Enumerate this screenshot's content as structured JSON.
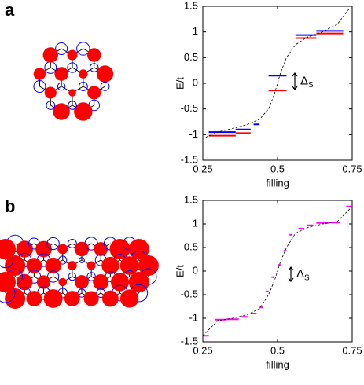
{
  "panels": [
    "a",
    "b"
  ],
  "chart_data": [
    {
      "type": "step",
      "xlabel": "filling",
      "ylabel": "E/t",
      "xlim": [
        0.25,
        0.75
      ],
      "ylim": [
        -1.5,
        1.5
      ],
      "xticks": [
        0.25,
        0.5,
        0.75
      ],
      "yticks": [
        -1.5,
        -1,
        -0.5,
        0,
        0.5,
        1,
        1.5
      ],
      "annotation": {
        "text": "Δ",
        "subscript": "S"
      },
      "series": [
        {
          "color": "#0000ff",
          "style": "solid",
          "x": [
            0.27,
            0.36,
            null,
            0.36,
            0.41,
            null,
            0.42,
            0.44,
            null,
            0.47,
            0.53,
            null,
            0.56,
            0.63,
            null,
            0.63,
            0.72
          ],
          "values": [
            -0.95,
            -0.95,
            null,
            -0.9,
            -0.9,
            null,
            -0.8,
            -0.8,
            null,
            0.15,
            0.15,
            null,
            0.94,
            0.94,
            null,
            1.02,
            1.02
          ]
        },
        {
          "color": "#ff0000",
          "style": "solid",
          "x": [
            0.27,
            0.36,
            null,
            0.36,
            0.41,
            null,
            0.47,
            0.53,
            null,
            0.56,
            0.63,
            null,
            0.63,
            0.72
          ],
          "values": [
            -1.02,
            -1.02,
            null,
            -0.97,
            -0.97,
            null,
            -0.14,
            -0.14,
            null,
            0.88,
            0.88,
            null,
            0.97,
            0.97
          ]
        },
        {
          "color": "#000000",
          "style": "dashed",
          "x": [
            0.26,
            0.3,
            0.35,
            0.4,
            0.44,
            0.47,
            0.49,
            0.5,
            0.51,
            0.53,
            0.56,
            0.6,
            0.65,
            0.7,
            0.74
          ],
          "values": [
            -1.05,
            -0.95,
            -0.88,
            -0.8,
            -0.7,
            -0.5,
            -0.2,
            0,
            0.2,
            0.5,
            0.75,
            0.9,
            1.0,
            1.15,
            1.45
          ]
        }
      ]
    },
    {
      "type": "step",
      "xlabel": "filling",
      "ylabel": "E/t",
      "xlim": [
        0.25,
        0.75
      ],
      "ylim": [
        -1.5,
        1.5
      ],
      "xticks": [
        0.25,
        0.5,
        0.75
      ],
      "yticks": [
        -1.5,
        -1,
        -0.5,
        0,
        0.5,
        1,
        1.5
      ],
      "annotation": {
        "text": "Δ",
        "subscript": "S"
      },
      "series": [
        {
          "color": "#ff00ff",
          "style": "solid",
          "x": [
            0.25,
            0.27,
            null,
            0.29,
            0.33,
            null,
            0.33,
            0.37,
            null,
            0.38,
            0.4,
            null,
            0.41,
            0.43,
            null,
            0.44,
            0.45,
            null,
            0.46,
            0.47,
            null,
            0.48,
            0.49,
            null,
            0.5,
            0.51,
            null,
            0.52,
            0.53,
            null,
            0.54,
            0.55,
            null,
            0.57,
            0.59,
            null,
            0.6,
            0.62,
            null,
            0.63,
            0.67,
            null,
            0.67,
            0.71,
            null,
            0.73,
            0.75
          ],
          "values": [
            -1.37,
            -1.37,
            null,
            -1.03,
            -1.03,
            null,
            -1.02,
            -1.02,
            null,
            -0.97,
            -0.97,
            null,
            -0.9,
            -0.9,
            null,
            -0.77,
            -0.77,
            null,
            -0.43,
            -0.43,
            null,
            -0.13,
            -0.13,
            null,
            0.13,
            0.13,
            null,
            0.43,
            0.43,
            null,
            0.77,
            0.77,
            null,
            0.9,
            0.9,
            null,
            0.97,
            0.97,
            null,
            1.02,
            1.02,
            null,
            1.03,
            1.03,
            null,
            1.37,
            1.37
          ]
        },
        {
          "color": "#000000",
          "style": "dashed",
          "x": [
            0.25,
            0.3,
            0.35,
            0.4,
            0.44,
            0.47,
            0.49,
            0.5,
            0.51,
            0.53,
            0.56,
            0.6,
            0.65,
            0.7,
            0.75
          ],
          "values": [
            -1.37,
            -1.05,
            -1.0,
            -0.92,
            -0.8,
            -0.5,
            -0.2,
            0,
            0.2,
            0.5,
            0.8,
            0.92,
            1.0,
            1.05,
            1.37
          ]
        }
      ]
    }
  ]
}
